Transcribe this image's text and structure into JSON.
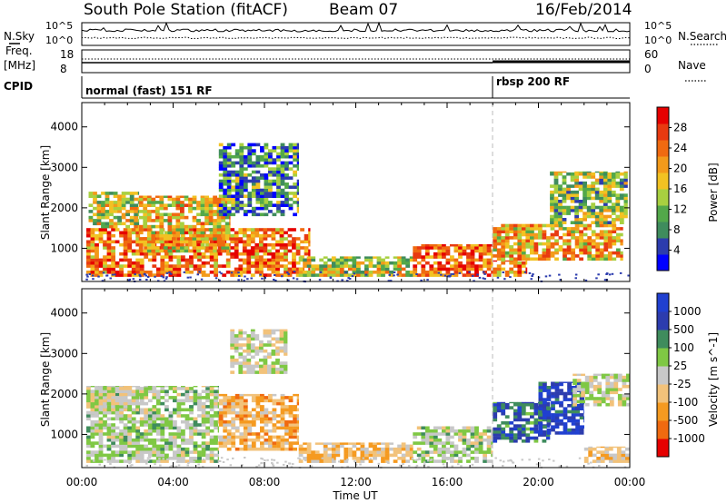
{
  "header": {
    "station": "South Pole Station (fitACF)",
    "beam": "Beam 07",
    "date": "16/Feb/2014"
  },
  "top_panels": {
    "nsky_label": "N.Sky",
    "nsearch_label": "N.Search",
    "noise_ticks": [
      "10^5",
      "10^0"
    ],
    "freq_label": "Freq.",
    "freq_unit": "[MHz]",
    "freq_ticks": [
      "18",
      "8"
    ],
    "nave_label": "Nave",
    "nave_ticks": [
      "60",
      "0"
    ],
    "cpid_label": "CPID",
    "cpid_segments": [
      {
        "label": "normal (fast) 151 RF",
        "start_hour": 0
      },
      {
        "label": "rbsp 200 RF",
        "start_hour": 18
      }
    ]
  },
  "colors": {
    "power_scale": [
      "#0000ff",
      "#2c3cae",
      "#3f8c5d",
      "#53a84a",
      "#a8d040",
      "#f2c222",
      "#f39a1a",
      "#f06a10",
      "#e83a10",
      "#e60000"
    ],
    "velocity_scale": [
      "#e60000",
      "#f06a10",
      "#f59a20",
      "#f2c27a",
      "#c8c8c8",
      "#7fc844",
      "#3f8c5d",
      "#2c3cae",
      "#2040d0"
    ]
  },
  "chart_data": [
    {
      "type": "heatmap",
      "panel": "power",
      "title": "",
      "xlabel": "",
      "ylabel": "Slant Range [km]",
      "xlim": [
        0,
        24
      ],
      "ylim": [
        180,
        4600
      ],
      "x_ticks": [
        "00:00",
        "04:00",
        "08:00",
        "12:00",
        "16:00",
        "20:00",
        "00:00"
      ],
      "y_ticks": [
        1000,
        2000,
        3000,
        4000
      ],
      "colorbar": {
        "label": "Power [dB]",
        "ticks": [
          "4",
          "8",
          "12",
          "16",
          "20",
          "24",
          "28"
        ],
        "range": [
          0,
          30
        ]
      },
      "regions": [
        {
          "t": [
            0.2,
            10.0
          ],
          "r": [
            300,
            1500
          ],
          "level": 22
        },
        {
          "t": [
            0.3,
            2.5
          ],
          "r": [
            1500,
            2400
          ],
          "level": 14
        },
        {
          "t": [
            2.5,
            6.5
          ],
          "r": [
            900,
            2300
          ],
          "level": 17
        },
        {
          "t": [
            6.0,
            9.5
          ],
          "r": [
            1800,
            3600
          ],
          "level": 8
        },
        {
          "t": [
            9.5,
            14.5
          ],
          "r": [
            300,
            800
          ],
          "level": 14
        },
        {
          "t": [
            14.5,
            18.0
          ],
          "r": [
            300,
            1100
          ],
          "level": 23
        },
        {
          "t": [
            18.0,
            19.5
          ],
          "r": [
            300,
            700
          ],
          "level": 22
        },
        {
          "t": [
            18.0,
            23.7
          ],
          "r": [
            700,
            1600
          ],
          "level": 19
        },
        {
          "t": [
            20.5,
            23.9
          ],
          "r": [
            1600,
            2900
          ],
          "level": 12
        }
      ]
    },
    {
      "type": "heatmap",
      "panel": "velocity",
      "title": "",
      "xlabel": "Time UT",
      "ylabel": "Slant Range [km]",
      "xlim": [
        0,
        24
      ],
      "ylim": [
        180,
        4600
      ],
      "x_ticks": [
        "00:00",
        "04:00",
        "08:00",
        "12:00",
        "16:00",
        "20:00",
        "00:00"
      ],
      "y_ticks": [
        1000,
        2000,
        3000,
        4000
      ],
      "colorbar": {
        "label": "Velocity [m s^-1]",
        "ticks": [
          "-1000",
          "-500",
          "-100",
          "-25",
          "25",
          "100",
          "500",
          "1000"
        ],
        "range": [
          -1200,
          1200
        ]
      },
      "regions": [
        {
          "t": [
            0.2,
            6.0
          ],
          "r": [
            300,
            2200
          ],
          "level": 150
        },
        {
          "t": [
            0.2,
            2.5
          ],
          "r": [
            1500,
            2200
          ],
          "level": 0
        },
        {
          "t": [
            6.0,
            9.5
          ],
          "r": [
            600,
            2000
          ],
          "level": -400
        },
        {
          "t": [
            6.5,
            9.0
          ],
          "r": [
            2500,
            3600
          ],
          "level": 0
        },
        {
          "t": [
            9.5,
            14.5
          ],
          "r": [
            300,
            800
          ],
          "level": -300
        },
        {
          "t": [
            14.5,
            18.0
          ],
          "r": [
            300,
            1200
          ],
          "level": 120
        },
        {
          "t": [
            18.0,
            20.5
          ],
          "r": [
            800,
            1800
          ],
          "level": 700
        },
        {
          "t": [
            20.0,
            22.0
          ],
          "r": [
            1000,
            2300
          ],
          "level": 900
        },
        {
          "t": [
            21.5,
            24.0
          ],
          "r": [
            1700,
            2500
          ],
          "level": 0
        },
        {
          "t": [
            22.0,
            24.0
          ],
          "r": [
            300,
            700
          ],
          "level": -300
        }
      ]
    }
  ]
}
